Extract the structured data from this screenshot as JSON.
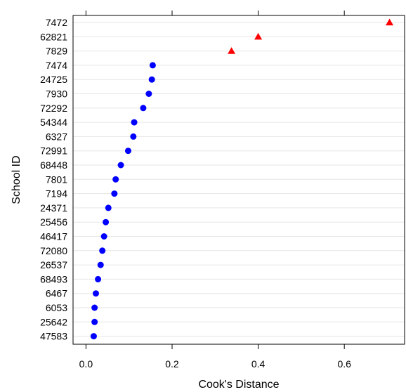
{
  "chart_data": {
    "type": "scatter",
    "title": "",
    "xlabel": "Cook's Distance",
    "ylabel": "School ID",
    "xlim": [
      -0.03,
      0.74
    ],
    "x_ticks": [
      0.0,
      0.2,
      0.4,
      0.6
    ],
    "x_tick_labels": [
      "0.0",
      "0.2",
      "0.4",
      "0.6"
    ],
    "grid": true,
    "categories": [
      "7472",
      "62821",
      "7829",
      "7474",
      "24725",
      "7930",
      "72292",
      "54344",
      "6327",
      "72991",
      "68448",
      "7801",
      "7194",
      "24371",
      "25456",
      "46417",
      "72080",
      "26537",
      "68493",
      "6467",
      "6053",
      "25642",
      "47583"
    ],
    "values": [
      0.705,
      0.4,
      0.338,
      0.155,
      0.153,
      0.146,
      0.133,
      0.112,
      0.11,
      0.098,
      0.081,
      0.069,
      0.066,
      0.052,
      0.046,
      0.042,
      0.038,
      0.034,
      0.028,
      0.023,
      0.02,
      0.02,
      0.018
    ],
    "markers": [
      "triangle",
      "triangle",
      "triangle",
      "circle",
      "circle",
      "circle",
      "circle",
      "circle",
      "circle",
      "circle",
      "circle",
      "circle",
      "circle",
      "circle",
      "circle",
      "circle",
      "circle",
      "circle",
      "circle",
      "circle",
      "circle",
      "circle",
      "circle"
    ],
    "colors": {
      "triangle": "#ff0000",
      "circle": "#0000ff",
      "grid": "#e6e6e6",
      "axis": "#000000"
    }
  }
}
